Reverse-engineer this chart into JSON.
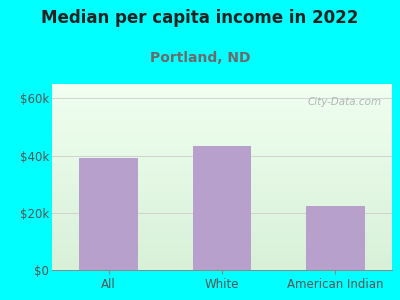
{
  "title": "Median per capita income in 2022",
  "subtitle": "Portland, ND",
  "categories": [
    "All",
    "White",
    "American Indian"
  ],
  "values": [
    39000,
    43500,
    22500
  ],
  "bar_color": "#b8a0cc",
  "title_fontsize": 12,
  "subtitle_fontsize": 10,
  "subtitle_color": "#6b6b6b",
  "title_color": "#222222",
  "tick_color": "#555555",
  "background_outer": "#00ffff",
  "ylim": [
    0,
    65000
  ],
  "yticks": [
    0,
    20000,
    40000,
    60000
  ],
  "ytick_labels": [
    "$0",
    "$20k",
    "$40k",
    "$60k"
  ],
  "watermark": "City-Data.com",
  "watermark_color": "#aaaaaa",
  "xlim": [
    -0.5,
    2.5
  ]
}
